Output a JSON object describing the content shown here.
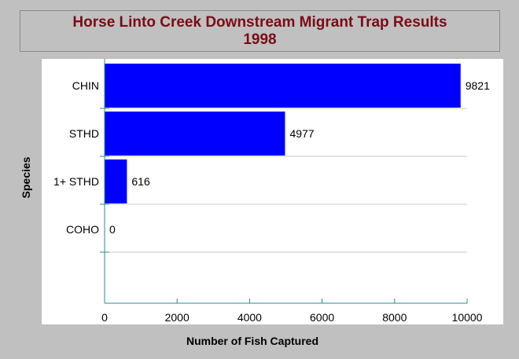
{
  "chart_data": {
    "type": "bar",
    "orientation": "horizontal",
    "title_line1": "Horse Linto Creek Downstream Migrant Trap Results",
    "title_line2": "1998",
    "xlabel": "Number of Fish Captured",
    "ylabel": "Species",
    "categories": [
      "CHIN",
      "STHD",
      "1+ STHD",
      "COHO"
    ],
    "values": [
      9821,
      4977,
      616,
      0
    ],
    "data_labels": [
      "9821",
      "4977",
      "616",
      "0"
    ],
    "xlim": [
      0,
      10000
    ],
    "xticks": [
      0,
      2000,
      4000,
      6000,
      8000,
      10000
    ],
    "xtick_labels": [
      "0",
      "2000",
      "4000",
      "6000",
      "8000",
      "10000"
    ],
    "grid": "horizontal",
    "legend": "none",
    "colors": {
      "bar": "#0000ff",
      "title": "#7b0b16",
      "axis": "#2e8b8b",
      "grid": "#c8c8c8",
      "background": "#c0c0c0",
      "plot_background": "#ffffff"
    }
  }
}
